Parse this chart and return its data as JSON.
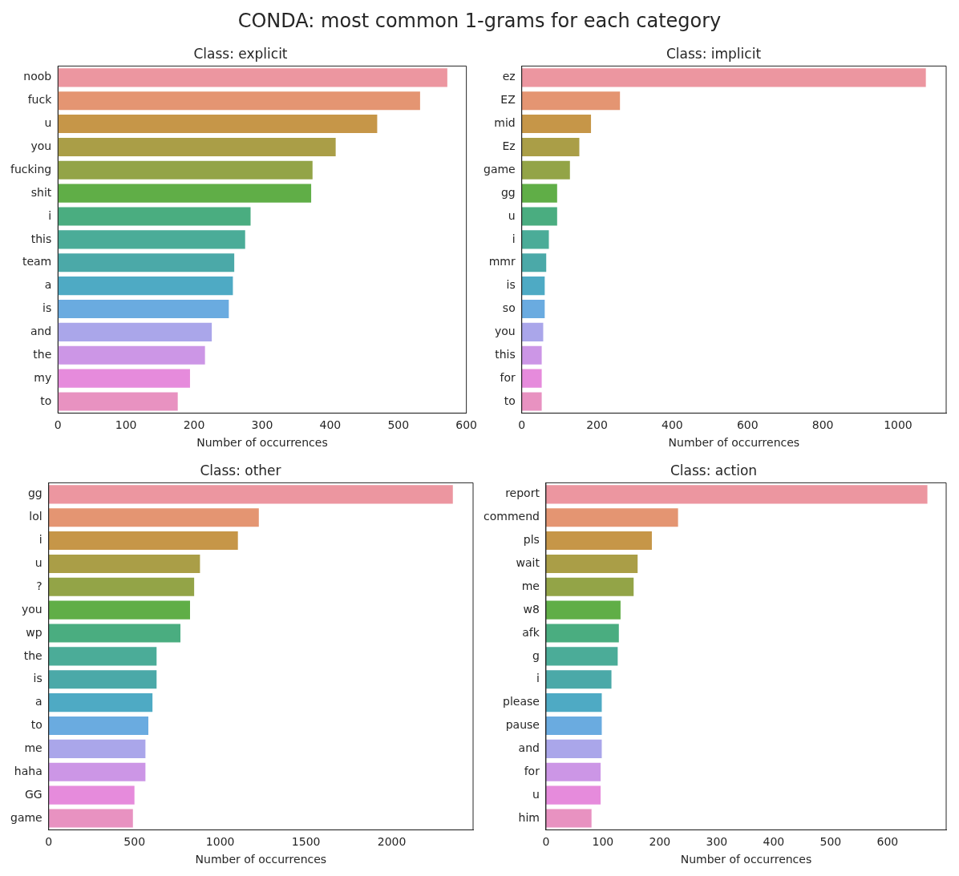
{
  "chart_data": [
    {
      "type": "bar",
      "orientation": "horizontal",
      "title": "Class: explicit",
      "xlabel": "Number of occurrences",
      "annotations": [
        "CONDA: most common 1-grams for each category"
      ],
      "grid": false,
      "legend": false,
      "categories": [
        "noob",
        "fuck",
        "u",
        "you",
        "fucking",
        "shit",
        "i",
        "this",
        "team",
        "a",
        "is",
        "and",
        "the",
        "my",
        "to"
      ],
      "values": [
        572,
        532,
        469,
        408,
        374,
        372,
        283,
        275,
        259,
        257,
        251,
        226,
        216,
        194,
        176
      ],
      "colors": [
        "#ec96a0",
        "#e49572",
        "#c69648",
        "#aa9e47",
        "#93a447",
        "#60ae47",
        "#4aad80",
        "#4bac98",
        "#4ba9a8",
        "#4eaac4",
        "#6aabe0",
        "#aaa6ea",
        "#cc96e6",
        "#e68bdc",
        "#e892c1"
      ],
      "xlim": [
        0,
        600
      ],
      "xticks": [
        0,
        100,
        200,
        300,
        400,
        500,
        600
      ]
    },
    {
      "type": "bar",
      "orientation": "horizontal",
      "title": "Class: implicit",
      "xlabel": "Number of occurrences",
      "grid": false,
      "legend": false,
      "categories": [
        "ez",
        "EZ",
        "mid",
        "Ez",
        "game",
        "gg",
        "u",
        "i",
        "mmr",
        "is",
        "so",
        "you",
        "this",
        "for",
        "to"
      ],
      "values": [
        1074,
        261,
        184,
        153,
        128,
        94,
        94,
        72,
        65,
        61,
        61,
        57,
        53,
        53,
        53
      ],
      "colors": [
        "#ec96a0",
        "#e49572",
        "#c69648",
        "#aa9e47",
        "#93a447",
        "#60ae47",
        "#4aad80",
        "#4bac98",
        "#4ba9a8",
        "#4eaac4",
        "#6aabe0",
        "#aaa6ea",
        "#cc96e6",
        "#e68bdc",
        "#e892c1"
      ],
      "xlim": [
        0,
        1128
      ],
      "xticks": [
        0,
        200,
        400,
        600,
        800,
        1000
      ]
    },
    {
      "type": "bar",
      "orientation": "horizontal",
      "title": "Class: other",
      "xlabel": "Number of occurrences",
      "grid": false,
      "legend": false,
      "categories": [
        "gg",
        "lol",
        "i",
        "u",
        "?",
        "you",
        "wp",
        "the",
        "is",
        "a",
        "to",
        "me",
        "haha",
        "GG",
        "game"
      ],
      "values": [
        2356,
        1225,
        1103,
        882,
        848,
        824,
        768,
        629,
        629,
        605,
        581,
        564,
        564,
        500,
        491
      ],
      "colors": [
        "#ec96a0",
        "#e49572",
        "#c69648",
        "#aa9e47",
        "#93a447",
        "#60ae47",
        "#4aad80",
        "#4bac98",
        "#4ba9a8",
        "#4eaac4",
        "#6aabe0",
        "#aaa6ea",
        "#cc96e6",
        "#e68bdc",
        "#e892c1"
      ],
      "xlim": [
        0,
        2474
      ],
      "xticks": [
        0,
        500,
        1000,
        1500,
        2000
      ]
    },
    {
      "type": "bar",
      "orientation": "horizontal",
      "title": "Class: action",
      "xlabel": "Number of occurrences",
      "grid": false,
      "legend": false,
      "categories": [
        "report",
        "commend",
        "pls",
        "wait",
        "me",
        "w8",
        "afk",
        "g",
        "i",
        "please",
        "pause",
        "and",
        "for",
        "u",
        "him"
      ],
      "values": [
        670,
        232,
        186,
        161,
        154,
        131,
        128,
        126,
        115,
        98,
        98,
        98,
        96,
        96,
        80
      ],
      "colors": [
        "#ec96a0",
        "#e49572",
        "#c69648",
        "#aa9e47",
        "#93a447",
        "#60ae47",
        "#4aad80",
        "#4bac98",
        "#4ba9a8",
        "#4eaac4",
        "#6aabe0",
        "#aaa6ea",
        "#cc96e6",
        "#e68bdc",
        "#e892c1"
      ],
      "xlim": [
        0,
        703
      ],
      "xticks": [
        0,
        100,
        200,
        300,
        400,
        500,
        600
      ]
    }
  ]
}
